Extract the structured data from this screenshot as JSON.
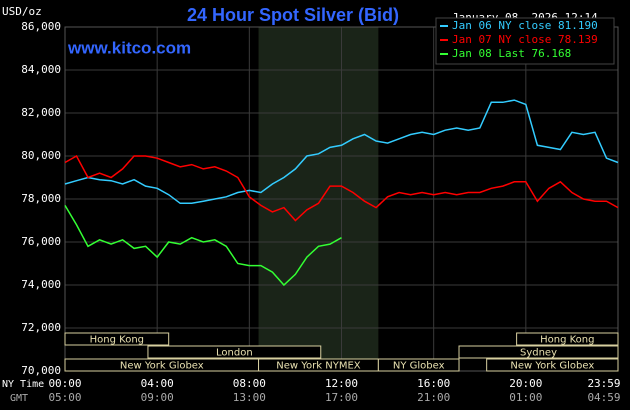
{
  "chart_data": {
    "type": "line",
    "title": "24 Hour Spot Silver (Bid)",
    "timestamp": "January 08, 2026 12:14",
    "watermark": "www.kitco.com",
    "y_label": "USD/oz",
    "x_label_top": "NY Time",
    "x_label_bottom": "GMT",
    "xlim": [
      0,
      24
    ],
    "ylim": [
      70000,
      86000
    ],
    "yticks": [
      {
        "value": 70000,
        "label": "70,000"
      },
      {
        "value": 72000,
        "label": "72,000"
      },
      {
        "value": 74000,
        "label": "74,000"
      },
      {
        "value": 76000,
        "label": "76,000"
      },
      {
        "value": 78000,
        "label": "78,000"
      },
      {
        "value": 80000,
        "label": "80,000"
      },
      {
        "value": 82000,
        "label": "82,000"
      },
      {
        "value": 84000,
        "label": "84,000"
      },
      {
        "value": 86000,
        "label": "86,000"
      }
    ],
    "xticks": [
      {
        "value": 0,
        "label": "00:00"
      },
      {
        "value": 4,
        "label": "04:00"
      },
      {
        "value": 8,
        "label": "08:00"
      },
      {
        "value": 12,
        "label": "12:00"
      },
      {
        "value": 16,
        "label": "16:00"
      },
      {
        "value": 20,
        "label": "20:00"
      },
      {
        "value": 24,
        "label": "23:59"
      }
    ],
    "x2ticks": [
      {
        "value": 0,
        "label": "05:00"
      },
      {
        "value": 4,
        "label": "09:00"
      },
      {
        "value": 8,
        "label": "13:00"
      },
      {
        "value": 12,
        "label": "17:00"
      },
      {
        "value": 16,
        "label": "21:00"
      },
      {
        "value": 20,
        "label": "01:00"
      },
      {
        "value": 24,
        "label": "04:59"
      }
    ],
    "grid": true,
    "legend": "top-right",
    "shade": [
      8.4,
      13.6
    ],
    "sessions": [
      {
        "label": "Hong Kong",
        "start": 0,
        "end": 4.5,
        "row": 0
      },
      {
        "label": "Hong Kong",
        "start": 19.6,
        "end": 24,
        "row": 0
      },
      {
        "label": "London",
        "start": 3.6,
        "end": 11.1,
        "row": 1
      },
      {
        "label": "Sydney",
        "start": 17.1,
        "end": 24,
        "row": 1
      },
      {
        "label": "New York Globex",
        "start": 0,
        "end": 8.4,
        "row": 2
      },
      {
        "label": "New York NYMEX",
        "start": 8.4,
        "end": 13.6,
        "row": 2
      },
      {
        "label": "NY Globex",
        "start": 13.6,
        "end": 17.1,
        "row": 2
      },
      {
        "label": "New York Globex",
        "start": 18.3,
        "end": 24,
        "row": 2
      }
    ],
    "x": [
      0,
      0.5,
      1,
      1.5,
      2,
      2.5,
      3,
      3.5,
      4,
      4.5,
      5,
      5.5,
      6,
      6.5,
      7,
      7.5,
      8,
      8.5,
      9,
      9.5,
      10,
      10.5,
      11,
      11.5,
      12,
      12.5,
      13,
      13.5,
      14,
      14.5,
      15,
      15.5,
      16,
      16.5,
      17,
      17.5,
      18,
      18.5,
      19,
      19.5,
      20,
      20.5,
      21,
      21.5,
      22,
      22.5,
      23,
      23.5,
      24
    ],
    "series": [
      {
        "name": "Jan 06 NY close 81.190",
        "color": "#33ccff",
        "values": [
          78700,
          78850,
          79000,
          78900,
          78850,
          78700,
          78900,
          78600,
          78500,
          78200,
          77800,
          77800,
          77900,
          78000,
          78100,
          78300,
          78400,
          78300,
          78700,
          79000,
          79400,
          80000,
          80100,
          80400,
          80500,
          80800,
          81000,
          80700,
          80600,
          80800,
          81000,
          81100,
          81000,
          81200,
          81300,
          81200,
          81300,
          82500,
          82500,
          82600,
          82400,
          80500,
          80400,
          80300,
          81100,
          81000,
          81100,
          79900,
          79700
        ]
      },
      {
        "name": "Jan 07 NY close 78.139",
        "color": "#ff0000",
        "values": [
          79700,
          80000,
          79000,
          79200,
          79000,
          79400,
          80000,
          80000,
          79900,
          79700,
          79500,
          79600,
          79400,
          79500,
          79300,
          79000,
          78100,
          77700,
          77400,
          77600,
          77000,
          77500,
          77800,
          78600,
          78600,
          78300,
          77900,
          77600,
          78100,
          78300,
          78200,
          78300,
          78200,
          78300,
          78200,
          78300,
          78300,
          78500,
          78600,
          78800,
          78800,
          77900,
          78500,
          78800,
          78300,
          78000,
          77900,
          77900,
          77600
        ]
      },
      {
        "name": "Jan 08 Last 76.168",
        "color": "#33ff33",
        "values": [
          77700,
          76800,
          75800,
          76100,
          75900,
          76100,
          75700,
          75800,
          75300,
          76000,
          75900,
          76200,
          76000,
          76100,
          75800,
          75000,
          74900,
          74900,
          74600,
          74000,
          74500,
          75300,
          75800,
          75900,
          76200,
          null,
          null,
          null,
          null,
          null,
          null,
          null,
          null,
          null,
          null,
          null,
          null,
          null,
          null,
          null,
          null,
          null,
          null,
          null,
          null,
          null,
          null,
          null,
          null
        ]
      }
    ]
  }
}
